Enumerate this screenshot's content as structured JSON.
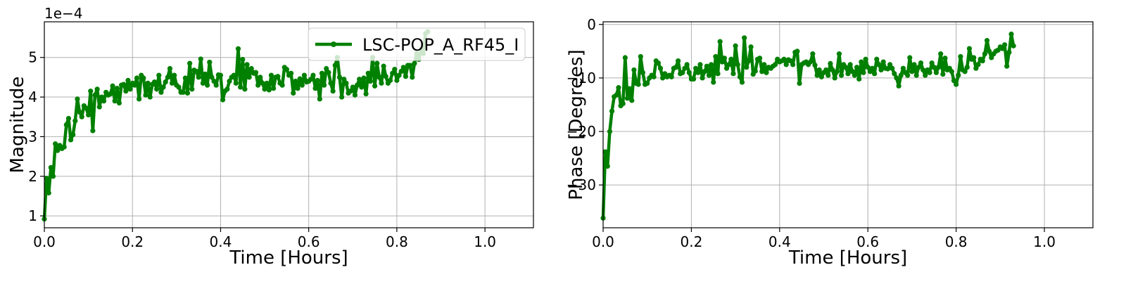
{
  "chart_data": [
    {
      "type": "line",
      "xlabel": "Time [Hours]",
      "ylabel": "Magnitude",
      "y_multiplier_label": "1e−4",
      "xlim": [
        0,
        1.11
      ],
      "ylim": [
        0.7,
        5.9
      ],
      "xticks": [
        0.0,
        0.2,
        0.4,
        0.6,
        0.8,
        1.0
      ],
      "xtick_labels": [
        "0.0",
        "0.2",
        "0.4",
        "0.6",
        "0.8",
        "1.0"
      ],
      "yticks": [
        1,
        2,
        3,
        4,
        5
      ],
      "ytick_labels": [
        "1",
        "2",
        "3",
        "4",
        "5"
      ],
      "grid": true,
      "legend": {
        "position": "top-right",
        "entries": [
          "LSC-POP_A_RF45_I"
        ]
      },
      "series": [
        {
          "name": "LSC-POP_A_RF45_I",
          "color": "#008000",
          "marker": "circle",
          "x_start": 0.0,
          "x_step": 0.005,
          "y": [
            0.92,
            1.95,
            1.58,
            2.22,
            2.0,
            2.82,
            2.65,
            2.78,
            2.7,
            2.74,
            3.3,
            3.46,
            2.92,
            3.05,
            3.4,
            3.95,
            3.62,
            3.5,
            3.78,
            3.72,
            3.55,
            4.15,
            3.15,
            4.05,
            4.2,
            3.75,
            4.0,
            3.9,
            4.12,
            4.05,
            4.08,
            4.28,
            3.9,
            4.22,
            3.85,
            4.3,
            4.32,
            4.15,
            4.42,
            4.2,
            4.35,
            4.3,
            4.48,
            3.95,
            4.55,
            4.48,
            4.05,
            4.35,
            4.0,
            4.32,
            4.38,
            4.2,
            4.55,
            4.12,
            4.25,
            4.38,
            4.5,
            4.72,
            4.35,
            4.55,
            4.3,
            4.25,
            4.12,
            4.12,
            4.48,
            4.1,
            4.85,
            4.2,
            4.68,
            4.65,
            4.5,
            4.96,
            4.35,
            4.58,
            4.3,
            4.88,
            4.5,
            4.4,
            4.3,
            4.56,
            4.55,
            3.93,
            4.15,
            4.2,
            4.4,
            4.5,
            4.55,
            4.35,
            5.22,
            4.25,
            4.95,
            4.2,
            4.82,
            4.5,
            4.72,
            4.6,
            4.62,
            4.3,
            4.5,
            4.35,
            4.2,
            4.35,
            4.18,
            4.55,
            4.22,
            4.5,
            4.52,
            4.35,
            4.3,
            4.75,
            4.7,
            4.55,
            4.6,
            4.1,
            4.4,
            4.22,
            4.46,
            4.3,
            4.55,
            4.38,
            4.4,
            4.45,
            4.55,
            4.22,
            4.42,
            3.95,
            4.6,
            4.3,
            4.72,
            4.62,
            4.35,
            4.15,
            4.8,
            5.0,
            4.5,
            4.0,
            4.45,
            4.35,
            4.1,
            4.15,
            4.25,
            4.05,
            4.3,
            4.45,
            4.25,
            4.48,
            4.08,
            4.6,
            4.4,
            5.0,
            4.28,
            4.85,
            4.5,
            4.35,
            4.78,
            4.52,
            4.35,
            4.42,
            4.6,
            4.7,
            4.42,
            4.55,
            4.65,
            4.75,
            4.52,
            4.8,
            4.8,
            4.5,
            4.85,
            5.1,
            4.95,
            5.2,
            5.1,
            5.6,
            5.65
          ]
        }
      ]
    },
    {
      "type": "line",
      "xlabel": "Time [Hours]",
      "ylabel": "Phase [Degrees]",
      "xlim": [
        0,
        1.11
      ],
      "ylim": [
        -38,
        0.5
      ],
      "xticks": [
        0.0,
        0.2,
        0.4,
        0.6,
        0.8,
        1.0
      ],
      "xtick_labels": [
        "0.0",
        "0.2",
        "0.4",
        "0.6",
        "0.8",
        "1.0"
      ],
      "yticks": [
        0,
        -10,
        -20,
        -30
      ],
      "ytick_labels": [
        "0",
        "−10",
        "−20",
        "−30"
      ],
      "grid": true,
      "series": [
        {
          "color": "#008000",
          "marker": "circle",
          "x_start": 0.0,
          "x_step": 0.005,
          "y": [
            -36.2,
            -23.8,
            -26.5,
            -20,
            -16.2,
            -13.5,
            -13.2,
            -11.8,
            -15.2,
            -14.8,
            -6.2,
            -13.8,
            -12,
            -14.2,
            -8.5,
            -11,
            -11.2,
            -6,
            -9,
            -11.2,
            -11,
            -10,
            -9.5,
            -9.8,
            -6.8,
            -7.2,
            -8.2,
            -10,
            -9.2,
            -9.8,
            -9.5,
            -9.8,
            -8.2,
            -8,
            -6.8,
            -9.2,
            -9,
            -8.2,
            -7.5,
            -9,
            -10.2,
            -10.2,
            -8.2,
            -9,
            -7.5,
            -10,
            -8.8,
            -7.8,
            -9.5,
            -7.5,
            -10.8,
            -6,
            -9.2,
            -3.2,
            -7,
            -6.3,
            -8.2,
            -7.5,
            -6.5,
            -9.2,
            -4,
            -7.5,
            -9.8,
            -10.8,
            -2.5,
            -8,
            -6.8,
            -4.2,
            -9.3,
            -8.7,
            -6.5,
            -6.3,
            -8.8,
            -7.5,
            -9,
            -8,
            -8.2,
            -7.8,
            -7.5,
            -6.5,
            -7,
            -6.8,
            -6.5,
            -7.5,
            -6.6,
            -6.8,
            -7.5,
            -5.2,
            -5,
            -11,
            -7.5,
            -7.2,
            -7,
            -7.5,
            -7,
            -5.5,
            -7.6,
            -9.5,
            -8.5,
            -9.8,
            -9,
            -8.5,
            -9.5,
            -7.3,
            -8.5,
            -10,
            -8.8,
            -5.5,
            -9.5,
            -7.5,
            -8,
            -9.2,
            -7.5,
            -8.8,
            -9.5,
            -8,
            -10.2,
            -7,
            -9,
            -6.5,
            -8,
            -8.8,
            -8.2,
            -9.2,
            -6.5,
            -7.5,
            -8.5,
            -7,
            -8.2,
            -8.3,
            -7.5,
            -8.2,
            -9.2,
            -10,
            -11.5,
            -9.5,
            -8.2,
            -9,
            -9.5,
            -6.2,
            -8.8,
            -7.5,
            -9.5,
            -8,
            -7.2,
            -8.5,
            -9.5,
            -8.5,
            -9,
            -7.2,
            -8,
            -9,
            -8,
            -5.5,
            -9.3,
            -6.3,
            -8.5,
            -8.2,
            -8.8,
            -10.5,
            -11.2,
            -9.5,
            -6,
            -8.5,
            -8.8,
            -8,
            -4.5,
            -6.5,
            -6.2,
            -8.2,
            -7.5,
            -6.5,
            -6.8,
            -5.5,
            -3,
            -5,
            -6.2,
            -5.5,
            -5,
            -4.8,
            -4.2,
            -4.5,
            -3.8,
            -7.8,
            -5.2,
            -1.8,
            -4
          ]
        }
      ]
    }
  ]
}
